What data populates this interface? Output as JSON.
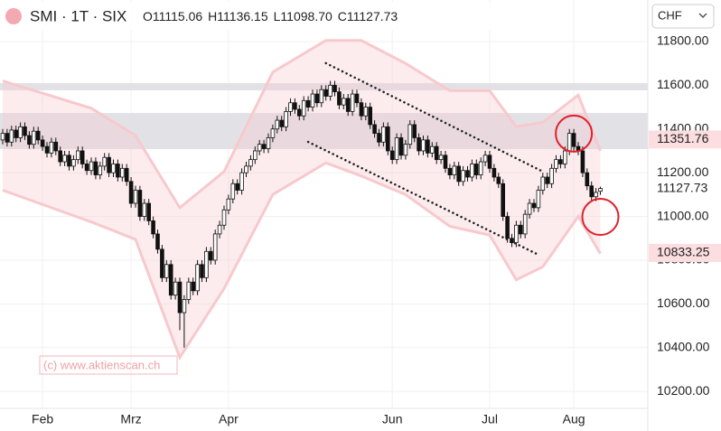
{
  "chart_data": {
    "type": "candlestick",
    "title": "SMI · 1T · SIX",
    "currency": "CHF",
    "ohlc_keys": [
      "O",
      "H",
      "L",
      "C"
    ],
    "ohlc_values": [
      11115.06,
      11136.15,
      {
        "value": 11098.7,
        "label": "11098.70"
      },
      11127.73
    ],
    "watermark": "(c) www.aktienscan.ch",
    "categories": [
      null,
      null,
      null,
      null,
      null,
      null,
      null,
      null,
      null,
      "Feb",
      null,
      null,
      null,
      null,
      null,
      null,
      null,
      null,
      null,
      null,
      null,
      null,
      null,
      null,
      null,
      null,
      null,
      null,
      null,
      "Mrz",
      null,
      null,
      null,
      null,
      null,
      null,
      null,
      null,
      null,
      null,
      null,
      null,
      null,
      null,
      null,
      null,
      null,
      null,
      null,
      null,
      null,
      "Apr",
      null,
      null,
      null,
      null,
      null,
      null,
      null,
      null,
      null,
      null,
      null,
      null,
      null,
      null,
      null,
      null,
      null,
      null,
      null,
      null,
      null,
      null,
      null,
      null,
      null,
      null,
      null,
      null,
      null,
      null,
      null,
      null,
      null,
      null,
      null,
      null,
      "Jun",
      null,
      null,
      null,
      null,
      null,
      null,
      null,
      null,
      null,
      null,
      null,
      null,
      null,
      null,
      null,
      null,
      null,
      null,
      null,
      null,
      null,
      "Jul",
      null,
      null,
      null,
      null,
      null,
      null,
      null,
      null,
      null,
      null,
      null,
      null,
      null,
      null,
      null,
      null,
      null,
      null,
      "Aug",
      null,
      null,
      null,
      null,
      null,
      null
    ],
    "candles": {
      "open": [
        11350,
        11380,
        11340,
        11395,
        11360,
        11410,
        11370,
        11330,
        11390,
        11350,
        11320,
        11290,
        11340,
        11300,
        11250,
        11280,
        11230,
        11260,
        11300,
        11240,
        11210,
        11250,
        11190,
        11230,
        11270,
        11200,
        11240,
        11180,
        11220,
        11160,
        11060,
        11120,
        11000,
        11060,
        10980,
        10920,
        10850,
        10720,
        10780,
        10640,
        10700,
        10560,
        10620,
        10700,
        10660,
        10780,
        10720,
        10840,
        10800,
        10920,
        10960,
        11030,
        11080,
        11150,
        11120,
        11200,
        11230,
        11260,
        11300,
        11330,
        11310,
        11360,
        11400,
        11440,
        11410,
        11480,
        11520,
        11490,
        11460,
        11530,
        11500,
        11560,
        11520,
        11580,
        11550,
        11600,
        11570,
        11510,
        11540,
        11480,
        11560,
        11520,
        11460,
        11500,
        11420,
        11380,
        11340,
        11410,
        11300,
        11260,
        11360,
        11280,
        11330,
        11420,
        11360,
        11300,
        11350,
        11290,
        11320,
        11260,
        11280,
        11220,
        11190,
        11230,
        11160,
        11210,
        11180,
        11240,
        11190,
        11250,
        11280,
        11220,
        11180,
        11150,
        11000,
        10900,
        10880,
        10960,
        10920,
        11010,
        11060,
        11040,
        11120,
        11180,
        11150,
        11220,
        11260,
        11240,
        11300,
        11380,
        11320,
        11300,
        11200,
        11140,
        11090,
        11115.06
      ],
      "high": [
        11400,
        11400,
        11415,
        11415,
        11430,
        11430,
        11390,
        11410,
        11410,
        11370,
        11340,
        11360,
        11360,
        11320,
        11300,
        11300,
        11280,
        11320,
        11320,
        11260,
        11270,
        11270,
        11250,
        11290,
        11290,
        11260,
        11260,
        11240,
        11240,
        11180,
        11140,
        11140,
        11080,
        11080,
        11000,
        10940,
        10870,
        10800,
        10800,
        10720,
        10720,
        10640,
        10720,
        10720,
        10800,
        10800,
        10860,
        10860,
        10940,
        10980,
        11050,
        11100,
        11170,
        11170,
        11220,
        11250,
        11280,
        11320,
        11350,
        11350,
        11380,
        11420,
        11460,
        11460,
        11500,
        11540,
        11540,
        11510,
        11550,
        11550,
        11580,
        11580,
        11600,
        11600,
        11620,
        11620,
        11590,
        11560,
        11560,
        11580,
        11580,
        11540,
        11520,
        11520,
        11440,
        11400,
        11430,
        11430,
        11320,
        11380,
        11380,
        11350,
        11440,
        11440,
        11380,
        11370,
        11370,
        11340,
        11340,
        11300,
        11300,
        11240,
        11250,
        11250,
        11230,
        11230,
        11260,
        11260,
        11270,
        11300,
        11300,
        11240,
        11200,
        11170,
        11020,
        10920,
        10980,
        10980,
        11030,
        11080,
        11080,
        11140,
        11200,
        11200,
        11240,
        11280,
        11280,
        11320,
        11400,
        11400,
        11340,
        11320,
        11220,
        11160,
        11130,
        11136.15
      ],
      "low": [
        11330,
        11320,
        11320,
        11340,
        11340,
        11350,
        11310,
        11310,
        11330,
        11300,
        11270,
        11270,
        11280,
        11230,
        11230,
        11210,
        11210,
        11240,
        11220,
        11190,
        11190,
        11170,
        11170,
        11210,
        11180,
        11180,
        11160,
        11160,
        11140,
        11040,
        11040,
        10980,
        10980,
        10960,
        10900,
        10830,
        10700,
        10700,
        10620,
        10620,
        10480,
        10400,
        10600,
        10640,
        10640,
        10700,
        10700,
        10780,
        10780,
        10900,
        10940,
        11010,
        11060,
        11100,
        11100,
        11180,
        11210,
        11240,
        11280,
        11290,
        11290,
        11340,
        11380,
        11390,
        11390,
        11460,
        11470,
        11440,
        11440,
        11480,
        11480,
        11500,
        11500,
        11530,
        11530,
        11550,
        11490,
        11490,
        11460,
        11460,
        11500,
        11440,
        11440,
        11400,
        11360,
        11320,
        11320,
        11280,
        11240,
        11240,
        11260,
        11260,
        11310,
        11340,
        11280,
        11280,
        11270,
        11270,
        11240,
        11240,
        11200,
        11170,
        11170,
        11140,
        11140,
        11160,
        11160,
        11170,
        11170,
        11230,
        11200,
        11160,
        11130,
        10980,
        10880,
        10860,
        10860,
        10900,
        10900,
        10990,
        11020,
        11020,
        11100,
        11130,
        11130,
        11200,
        11220,
        11220,
        11280,
        11300,
        11280,
        11180,
        11120,
        11070,
        11070,
        11098.7
      ],
      "close": [
        11380,
        11340,
        11395,
        11360,
        11410,
        11370,
        11330,
        11390,
        11350,
        11320,
        11290,
        11340,
        11300,
        11250,
        11280,
        11230,
        11260,
        11300,
        11240,
        11210,
        11250,
        11190,
        11230,
        11270,
        11200,
        11240,
        11180,
        11220,
        11160,
        11060,
        11120,
        11000,
        11060,
        10980,
        10920,
        10850,
        10720,
        10780,
        10640,
        10700,
        10560,
        10620,
        10700,
        10660,
        10780,
        10720,
        10840,
        10800,
        10920,
        10960,
        11030,
        11080,
        11150,
        11120,
        11200,
        11230,
        11260,
        11300,
        11330,
        11310,
        11360,
        11400,
        11440,
        11410,
        11480,
        11520,
        11490,
        11460,
        11530,
        11500,
        11560,
        11520,
        11580,
        11550,
        11600,
        11570,
        11510,
        11540,
        11480,
        11560,
        11520,
        11460,
        11500,
        11420,
        11380,
        11340,
        11410,
        11300,
        11260,
        11360,
        11280,
        11330,
        11420,
        11360,
        11300,
        11350,
        11290,
        11320,
        11260,
        11280,
        11220,
        11190,
        11230,
        11160,
        11210,
        11180,
        11240,
        11190,
        11250,
        11280,
        11220,
        11180,
        11150,
        11000,
        10900,
        10880,
        10960,
        10920,
        11010,
        11060,
        11040,
        11120,
        11180,
        11150,
        11220,
        11260,
        11240,
        11300,
        11380,
        11320,
        11300,
        11200,
        11140,
        11090,
        11110,
        11127.73
      ]
    },
    "envelope": {
      "x": [
        0,
        20,
        30,
        40,
        50,
        61,
        73,
        81,
        91,
        101,
        110,
        116,
        122,
        130,
        135
      ],
      "upper": [
        11620,
        11495,
        11370,
        11040,
        11205,
        11660,
        11805,
        11805,
        11700,
        11575,
        11575,
        11410,
        11430,
        11555,
        11300
      ],
      "lower": [
        11120,
        10975,
        10895,
        10355,
        10670,
        11100,
        11245,
        11185,
        11100,
        10955,
        10915,
        10710,
        10770,
        11000,
        10830
      ],
      "color": "#f7c9cd"
    },
    "zones": [
      {
        "from": 11577,
        "to": 11610
      },
      {
        "from": 11308,
        "to": 11473
      }
    ],
    "trendlines": [
      {
        "x": [
          73,
          122
        ],
        "y": [
          11701,
          11205
        ]
      },
      {
        "x": [
          69,
          121
        ],
        "y": [
          11341,
          10825
        ]
      }
    ],
    "circles": [
      {
        "x": 129,
        "y": 11379
      },
      {
        "x": 135,
        "y": 10998
      }
    ],
    "price_markers": [
      {
        "value": 11351.76,
        "highlight": true
      },
      {
        "value": 11127.73,
        "highlight": false
      },
      {
        "value": 10833.25,
        "highlight": true
      }
    ],
    "ylim": [
      10122,
      11990
    ],
    "yticks": [
      {
        "value": 11800,
        "label": "11800.00"
      },
      {
        "value": 11600,
        "label": "11600.00"
      },
      {
        "value": 11400,
        "label": "11400.00"
      },
      {
        "value": 11200,
        "label": "11200.00"
      },
      {
        "value": 11000,
        "label": "11000.00"
      },
      {
        "value": 10800,
        "label": "10800.00"
      },
      {
        "value": 10600,
        "label": "10600.00"
      },
      {
        "value": 10400,
        "label": "10400.00"
      },
      {
        "value": 10200,
        "label": "10200.00"
      }
    ],
    "grid": true,
    "up_color": "#ffffff",
    "down_color": "#111111"
  }
}
